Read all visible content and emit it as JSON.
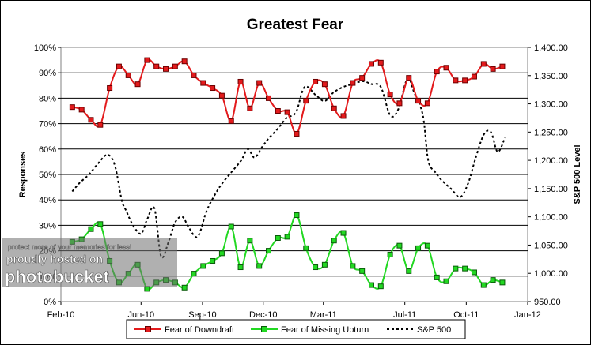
{
  "chart_data": {
    "type": "line",
    "title": "Greatest Fear",
    "ylabel": "Responses",
    "y2label": "S&P 500 Level",
    "ylim": [
      0,
      100
    ],
    "y2lim": [
      950,
      1400
    ],
    "xlim": [
      "2010-02-01",
      "2012-01-01"
    ],
    "grid": true,
    "legend_position": "bottom",
    "x_tick_labels": [
      "Feb-10",
      "Jun-10",
      "Sep-10",
      "Dec-10",
      "Mar-11",
      "Jul-11",
      "Oct-11",
      "Jan-12"
    ],
    "y_tick_labels": [
      "0%",
      "10%",
      "20%",
      "30%",
      "40%",
      "50%",
      "60%",
      "70%",
      "80%",
      "90%",
      "100%"
    ],
    "y2_tick_labels": [
      "950.00",
      "1,000.00",
      "1,050.00",
      "1,100.00",
      "1,150.00",
      "1,200.00",
      "1,250.00",
      "1,300.00",
      "1,350.00",
      "1,400.00"
    ],
    "x_ticks": [
      "2010-02-01",
      "2010-06-01",
      "2010-09-01",
      "2010-12-01",
      "2011-03-01",
      "2011-07-01",
      "2011-10-01",
      "2012-01-01"
    ],
    "series": [
      {
        "name": "Fear of Downdraft",
        "color": "#e31a1c",
        "marker": "square",
        "dates": [
          "2010-02-18",
          "2010-03-04",
          "2010-03-18",
          "2010-04-01",
          "2010-04-15",
          "2010-04-29",
          "2010-05-13",
          "2010-05-27",
          "2010-06-10",
          "2010-06-24",
          "2010-07-08",
          "2010-07-22",
          "2010-08-05",
          "2010-08-19",
          "2010-09-02",
          "2010-09-16",
          "2010-09-30",
          "2010-10-14",
          "2010-10-28",
          "2010-11-11",
          "2010-11-25",
          "2010-12-09",
          "2010-12-23",
          "2011-01-06",
          "2011-01-20",
          "2011-02-03",
          "2011-02-17",
          "2011-03-03",
          "2011-03-17",
          "2011-03-31",
          "2011-04-14",
          "2011-04-28",
          "2011-05-12",
          "2011-05-26",
          "2011-06-09",
          "2011-06-23",
          "2011-07-07",
          "2011-07-21",
          "2011-08-04",
          "2011-08-18",
          "2011-09-01",
          "2011-09-15",
          "2011-09-29",
          "2011-10-13",
          "2011-10-27",
          "2011-11-10",
          "2011-11-24"
        ],
        "values": [
          76.5,
          75.5,
          71.5,
          69.5,
          84,
          92.5,
          89,
          85.5,
          95,
          92.5,
          91.5,
          92.5,
          94.5,
          89,
          86,
          84,
          81,
          71,
          86.5,
          76,
          86,
          80,
          75,
          74.5,
          66,
          79,
          86.5,
          85.5,
          76,
          73,
          86,
          88,
          93.5,
          94,
          81.5,
          78,
          88,
          79,
          78,
          90.5,
          92,
          87,
          87,
          88.5,
          93.5,
          91.5,
          92.5
        ]
      },
      {
        "name": "Fear of Missing Upturn",
        "color": "#22d822",
        "marker": "square",
        "dates": [
          "2010-02-18",
          "2010-03-04",
          "2010-03-18",
          "2010-04-01",
          "2010-04-15",
          "2010-04-29",
          "2010-05-13",
          "2010-05-27",
          "2010-06-10",
          "2010-06-24",
          "2010-07-08",
          "2010-07-22",
          "2010-08-05",
          "2010-08-19",
          "2010-09-02",
          "2010-09-16",
          "2010-09-30",
          "2010-10-14",
          "2010-10-28",
          "2010-11-11",
          "2010-11-25",
          "2010-12-09",
          "2010-12-23",
          "2011-01-06",
          "2011-01-20",
          "2011-02-03",
          "2011-02-17",
          "2011-03-03",
          "2011-03-17",
          "2011-03-31",
          "2011-04-14",
          "2011-04-28",
          "2011-05-12",
          "2011-05-26",
          "2011-06-09",
          "2011-06-23",
          "2011-07-07",
          "2011-07-21",
          "2011-08-04",
          "2011-08-18",
          "2011-09-01",
          "2011-09-15",
          "2011-09-29",
          "2011-10-13",
          "2011-10-27",
          "2011-11-10",
          "2011-11-24"
        ],
        "values": [
          23.5,
          24.5,
          28.5,
          30.5,
          16,
          7.5,
          11,
          14.5,
          5,
          7.5,
          8.5,
          7.5,
          5.5,
          11,
          14,
          16,
          19,
          29.5,
          13.5,
          24,
          14,
          20,
          25,
          25.5,
          34,
          21,
          13.5,
          14.5,
          24,
          27,
          14,
          12,
          6.5,
          6,
          18.5,
          22,
          12,
          21,
          22,
          9.5,
          8,
          13,
          13,
          11.5,
          6.5,
          8.5,
          7.5
        ]
      },
      {
        "name": "S&P 500",
        "color": "#000000",
        "marker": "none",
        "line": "dashed",
        "axis": "right",
        "dates": [
          "2010-02-18",
          "2010-03-01",
          "2010-03-15",
          "2010-03-29",
          "2010-04-12",
          "2010-04-23",
          "2010-05-03",
          "2010-05-10",
          "2010-05-20",
          "2010-06-01",
          "2010-06-10",
          "2010-06-21",
          "2010-07-01",
          "2010-07-12",
          "2010-07-22",
          "2010-08-02",
          "2010-08-12",
          "2010-08-25",
          "2010-09-07",
          "2010-09-20",
          "2010-10-01",
          "2010-10-15",
          "2010-10-29",
          "2010-11-08",
          "2010-11-18",
          "2010-11-30",
          "2010-12-10",
          "2010-12-22",
          "2011-01-05",
          "2011-01-19",
          "2011-02-01",
          "2011-02-18",
          "2011-03-03",
          "2011-03-16",
          "2011-03-31",
          "2011-04-14",
          "2011-04-29",
          "2011-05-12",
          "2011-05-26",
          "2011-06-09",
          "2011-06-21",
          "2011-07-05",
          "2011-07-15",
          "2011-07-28",
          "2011-08-05",
          "2011-08-15",
          "2011-08-25",
          "2011-09-08",
          "2011-09-22",
          "2011-10-04",
          "2011-10-14",
          "2011-10-27",
          "2011-11-07",
          "2011-11-17",
          "2011-11-28"
        ],
        "values": [
          1145,
          1160,
          1175,
          1195,
          1210,
          1190,
          1130,
          1110,
          1085,
          1070,
          1095,
          1115,
          1030,
          1055,
          1090,
          1100,
          1080,
          1065,
          1110,
          1140,
          1160,
          1180,
          1200,
          1220,
          1205,
          1225,
          1240,
          1255,
          1275,
          1285,
          1330,
          1315,
          1305,
          1320,
          1330,
          1335,
          1340,
          1335,
          1330,
          1280,
          1290,
          1345,
          1320,
          1280,
          1200,
          1180,
          1165,
          1150,
          1135,
          1160,
          1200,
          1245,
          1250,
          1215,
          1240
        ]
      }
    ]
  },
  "watermark": {
    "line1": "protect more of your memories for less!",
    "line2": "proudly hosted on",
    "line3": "photobucket"
  }
}
